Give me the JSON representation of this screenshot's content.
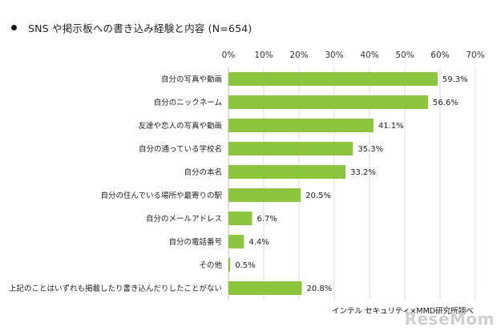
{
  "title": "SNS や掲示板への書き込み経験と内容 (N=654)",
  "source": "インテル セキュリティ×MMD研究所調べ",
  "logo_text": "ReseMom",
  "chart_data": {
    "type": "bar",
    "orientation": "horizontal",
    "categories": [
      "自分の写真や動画",
      "自分のニックネーム",
      "友達や恋人の写真や動画",
      "自分の通っている学校名",
      "自分の本名",
      "自分の住んでいる場所や最寄りの駅",
      "自分のメールアドレス",
      "自分の電話番号",
      "その他",
      "上記のことはいずれも掲載したり書き込んだりしたことがない"
    ],
    "values": [
      59.3,
      56.6,
      41.1,
      35.3,
      33.2,
      20.5,
      6.7,
      4.4,
      0.5,
      20.8
    ],
    "value_labels": [
      "59.3%",
      "56.6%",
      "41.1%",
      "35.3%",
      "33.2%",
      "20.5%",
      "6.7%",
      "4.4%",
      "0.5%",
      "20.8%"
    ],
    "xticks": [
      0,
      10,
      20,
      30,
      40,
      50,
      60,
      70
    ],
    "xtick_labels": [
      "0%",
      "10%",
      "20%",
      "30%",
      "40%",
      "50%",
      "60%",
      "70%"
    ],
    "xlim": [
      0,
      70
    ],
    "axis_position": "top",
    "grid": true,
    "colors": {
      "bar": "#8cc63f",
      "grid": "#d9d9d9",
      "axis": "#bfbfbf"
    }
  }
}
